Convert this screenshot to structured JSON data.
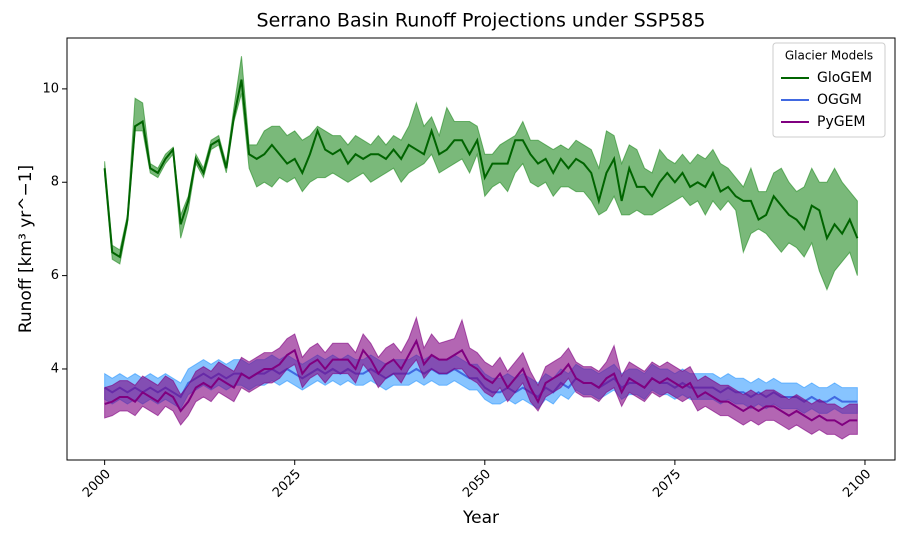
{
  "chart_data": {
    "type": "band-line",
    "title": "Serrano Basin Runoff Projections under SSP585",
    "xlabel": "Year",
    "ylabel": "Runoff [km³ yr^−1]",
    "legend_title": "Glacier Models",
    "legend_loc": "upper right",
    "xlim": [
      1995.05,
      2103.95
    ],
    "ylim": [
      2.05,
      11.09
    ],
    "xticks": [
      2000,
      2025,
      2050,
      2075,
      2100
    ],
    "yticks": [
      4,
      6,
      8,
      10
    ],
    "x": [
      2000,
      2001,
      2002,
      2003,
      2004,
      2005,
      2006,
      2007,
      2008,
      2009,
      2010,
      2011,
      2012,
      2013,
      2014,
      2015,
      2016,
      2017,
      2018,
      2019,
      2020,
      2021,
      2022,
      2023,
      2024,
      2025,
      2026,
      2027,
      2028,
      2029,
      2030,
      2031,
      2032,
      2033,
      2034,
      2035,
      2036,
      2037,
      2038,
      2039,
      2040,
      2041,
      2042,
      2043,
      2044,
      2045,
      2046,
      2047,
      2048,
      2049,
      2050,
      2051,
      2052,
      2053,
      2054,
      2055,
      2056,
      2057,
      2058,
      2059,
      2060,
      2061,
      2062,
      2063,
      2064,
      2065,
      2066,
      2067,
      2068,
      2069,
      2070,
      2071,
      2072,
      2073,
      2074,
      2075,
      2076,
      2077,
      2078,
      2079,
      2080,
      2081,
      2082,
      2083,
      2084,
      2085,
      2086,
      2087,
      2088,
      2089,
      2090,
      2091,
      2092,
      2093,
      2094,
      2095,
      2096,
      2097,
      2098,
      2099
    ],
    "series": [
      {
        "name": "GloGEM",
        "color": "#006400",
        "band_color": "#228b2299",
        "values": [
          8.3,
          6.5,
          6.4,
          7.2,
          9.2,
          9.3,
          8.3,
          8.2,
          8.5,
          8.7,
          7.1,
          7.6,
          8.5,
          8.2,
          8.8,
          8.9,
          8.3,
          9.4,
          10.2,
          8.6,
          8.5,
          8.6,
          8.8,
          8.6,
          8.4,
          8.5,
          8.2,
          8.6,
          9.1,
          8.7,
          8.6,
          8.7,
          8.4,
          8.6,
          8.5,
          8.6,
          8.6,
          8.5,
          8.7,
          8.5,
          8.8,
          8.7,
          8.6,
          9.1,
          8.6,
          8.7,
          8.9,
          8.9,
          8.6,
          8.9,
          8.1,
          8.4,
          8.4,
          8.4,
          8.9,
          8.9,
          8.6,
          8.4,
          8.5,
          8.2,
          8.5,
          8.3,
          8.5,
          8.4,
          8.2,
          7.6,
          8.2,
          8.5,
          7.6,
          8.3,
          7.9,
          7.9,
          7.7,
          8.0,
          8.2,
          8.0,
          8.2,
          7.9,
          8.0,
          7.9,
          8.2,
          7.8,
          7.9,
          7.7,
          7.6,
          7.6,
          7.2,
          7.3,
          7.7,
          7.5,
          7.3,
          7.2,
          7.0,
          7.5,
          7.4,
          6.8,
          7.1,
          6.9,
          7.2,
          6.8
        ],
        "lower": [
          8.15,
          6.35,
          6.25,
          7.1,
          9.1,
          9.1,
          8.2,
          8.1,
          8.4,
          8.6,
          6.8,
          7.4,
          8.4,
          8.1,
          8.7,
          8.8,
          8.2,
          9.3,
          9.9,
          8.3,
          7.9,
          8.0,
          7.9,
          8.1,
          8.0,
          8.1,
          7.8,
          8.0,
          8.1,
          8.1,
          8.2,
          8.1,
          8.0,
          8.1,
          8.2,
          8.0,
          8.1,
          8.2,
          8.3,
          8.0,
          8.2,
          8.3,
          8.4,
          8.6,
          8.2,
          8.3,
          8.4,
          8.5,
          8.2,
          8.6,
          7.7,
          7.9,
          8.0,
          7.8,
          8.2,
          8.4,
          8.0,
          7.9,
          8.0,
          7.7,
          7.9,
          7.9,
          7.8,
          7.8,
          7.6,
          7.3,
          7.4,
          7.7,
          7.3,
          7.3,
          7.4,
          7.3,
          7.3,
          7.4,
          7.5,
          7.6,
          7.7,
          7.5,
          7.6,
          7.3,
          7.6,
          7.4,
          7.6,
          7.4,
          6.5,
          6.9,
          7.0,
          6.9,
          6.7,
          6.5,
          6.7,
          6.6,
          6.4,
          6.7,
          6.1,
          5.7,
          6.1,
          6.3,
          6.5,
          6.0
        ],
        "upper": [
          8.45,
          6.65,
          6.55,
          7.3,
          9.8,
          9.7,
          8.4,
          8.3,
          8.6,
          8.75,
          7.3,
          7.7,
          8.6,
          8.3,
          8.9,
          9.0,
          8.4,
          9.6,
          10.7,
          8.8,
          8.8,
          9.1,
          9.2,
          9.2,
          9.0,
          9.1,
          8.9,
          9.0,
          9.2,
          9.1,
          9.0,
          9.0,
          8.8,
          9.0,
          8.9,
          8.8,
          9.0,
          8.8,
          9.0,
          8.9,
          9.2,
          9.7,
          9.2,
          9.4,
          9.0,
          9.6,
          9.3,
          9.3,
          9.3,
          9.2,
          8.6,
          8.6,
          8.8,
          8.9,
          9.0,
          9.3,
          8.9,
          8.9,
          8.8,
          8.7,
          8.8,
          8.7,
          8.9,
          8.8,
          8.7,
          8.3,
          9.1,
          9.0,
          8.4,
          8.8,
          8.7,
          8.3,
          8.2,
          8.7,
          8.5,
          8.4,
          8.6,
          8.4,
          8.6,
          8.5,
          8.7,
          8.4,
          8.3,
          8.1,
          7.9,
          8.3,
          7.8,
          7.8,
          8.2,
          8.3,
          8.0,
          7.8,
          7.9,
          8.3,
          8.0,
          8.0,
          8.3,
          8.0,
          7.8,
          7.6
        ]
      },
      {
        "name": "OGGM",
        "color": "#4169e1",
        "band_color": "#1e90ff88",
        "values": [
          3.6,
          3.5,
          3.6,
          3.5,
          3.6,
          3.5,
          3.6,
          3.5,
          3.6,
          3.5,
          3.4,
          3.7,
          3.8,
          3.9,
          3.8,
          3.9,
          3.8,
          3.9,
          3.9,
          3.8,
          3.9,
          3.9,
          4.0,
          3.9,
          4.0,
          3.9,
          3.8,
          3.9,
          4.0,
          3.9,
          4.0,
          3.9,
          4.0,
          3.9,
          3.9,
          4.0,
          3.9,
          3.8,
          3.9,
          3.9,
          3.9,
          4.0,
          3.9,
          4.0,
          3.9,
          3.9,
          4.0,
          3.9,
          3.8,
          3.8,
          3.6,
          3.5,
          3.5,
          3.6,
          3.5,
          3.6,
          3.5,
          3.4,
          3.6,
          3.5,
          3.7,
          3.6,
          3.8,
          3.7,
          3.7,
          3.6,
          3.7,
          3.8,
          3.6,
          3.7,
          3.7,
          3.6,
          3.8,
          3.7,
          3.7,
          3.6,
          3.7,
          3.6,
          3.6,
          3.6,
          3.6,
          3.5,
          3.6,
          3.5,
          3.5,
          3.4,
          3.5,
          3.4,
          3.5,
          3.4,
          3.4,
          3.4,
          3.3,
          3.4,
          3.3,
          3.3,
          3.4,
          3.3,
          3.3,
          3.3
        ],
        "lower": [
          3.35,
          3.25,
          3.35,
          3.25,
          3.35,
          3.25,
          3.35,
          3.25,
          3.35,
          3.25,
          3.15,
          3.45,
          3.55,
          3.65,
          3.55,
          3.65,
          3.55,
          3.65,
          3.65,
          3.55,
          3.65,
          3.65,
          3.75,
          3.65,
          3.75,
          3.65,
          3.55,
          3.65,
          3.75,
          3.65,
          3.75,
          3.65,
          3.75,
          3.65,
          3.65,
          3.75,
          3.65,
          3.55,
          3.65,
          3.65,
          3.65,
          3.75,
          3.65,
          3.75,
          3.65,
          3.65,
          3.75,
          3.65,
          3.55,
          3.55,
          3.35,
          3.25,
          3.25,
          3.35,
          3.25,
          3.35,
          3.25,
          3.15,
          3.35,
          3.25,
          3.45,
          3.35,
          3.55,
          3.45,
          3.45,
          3.35,
          3.45,
          3.55,
          3.35,
          3.45,
          3.45,
          3.35,
          3.55,
          3.45,
          3.45,
          3.35,
          3.45,
          3.35,
          3.35,
          3.35,
          3.35,
          3.25,
          3.35,
          3.25,
          3.25,
          3.15,
          3.25,
          3.15,
          3.25,
          3.15,
          3.15,
          3.15,
          3.05,
          3.15,
          3.05,
          3.05,
          3.15,
          3.05,
          3.05,
          3.05
        ],
        "upper": [
          3.9,
          3.8,
          3.9,
          3.8,
          3.9,
          3.8,
          3.9,
          3.8,
          3.9,
          3.8,
          3.7,
          4.0,
          4.1,
          4.2,
          4.1,
          4.2,
          4.1,
          4.2,
          4.2,
          4.1,
          4.2,
          4.2,
          4.3,
          4.2,
          4.3,
          4.2,
          4.1,
          4.2,
          4.3,
          4.2,
          4.3,
          4.2,
          4.3,
          4.2,
          4.2,
          4.3,
          4.2,
          4.1,
          4.2,
          4.2,
          4.2,
          4.3,
          4.2,
          4.3,
          4.2,
          4.2,
          4.3,
          4.2,
          4.1,
          4.1,
          3.9,
          3.8,
          3.8,
          3.9,
          3.8,
          3.9,
          3.8,
          3.7,
          3.9,
          3.8,
          4.0,
          3.9,
          4.1,
          4.0,
          4.0,
          3.9,
          4.0,
          4.1,
          3.9,
          4.0,
          4.0,
          3.9,
          4.1,
          4.0,
          4.0,
          3.9,
          4.0,
          3.9,
          3.9,
          3.9,
          3.9,
          3.8,
          3.9,
          3.8,
          3.8,
          3.7,
          3.8,
          3.7,
          3.8,
          3.7,
          3.7,
          3.7,
          3.6,
          3.7,
          3.6,
          3.6,
          3.7,
          3.6,
          3.6,
          3.6
        ]
      },
      {
        "name": "PyGEM",
        "color": "#800080",
        "band_color": "#80008099",
        "values": [
          3.25,
          3.3,
          3.4,
          3.4,
          3.3,
          3.5,
          3.4,
          3.3,
          3.5,
          3.4,
          3.1,
          3.3,
          3.6,
          3.7,
          3.6,
          3.8,
          3.7,
          3.6,
          3.9,
          3.8,
          3.9,
          4.0,
          4.0,
          4.1,
          4.3,
          4.4,
          3.9,
          4.1,
          4.2,
          4.0,
          4.2,
          4.2,
          4.2,
          4.0,
          4.4,
          4.2,
          3.9,
          4.1,
          4.2,
          4.0,
          4.3,
          4.6,
          4.1,
          4.3,
          4.2,
          4.2,
          4.3,
          4.4,
          4.1,
          4.0,
          3.8,
          3.7,
          3.9,
          3.6,
          3.8,
          4.0,
          3.6,
          3.3,
          3.7,
          3.8,
          3.9,
          4.1,
          3.8,
          3.7,
          3.7,
          3.6,
          3.8,
          3.9,
          3.5,
          3.8,
          3.7,
          3.6,
          3.8,
          3.7,
          3.8,
          3.7,
          3.6,
          3.7,
          3.4,
          3.5,
          3.4,
          3.3,
          3.3,
          3.2,
          3.1,
          3.2,
          3.1,
          3.2,
          3.2,
          3.1,
          3.0,
          3.1,
          3.0,
          2.9,
          3.0,
          2.9,
          2.9,
          2.8,
          2.9,
          2.9
        ],
        "lower": [
          2.95,
          3.0,
          3.1,
          3.1,
          3.0,
          3.2,
          3.1,
          3.0,
          3.2,
          3.1,
          2.8,
          3.0,
          3.3,
          3.4,
          3.3,
          3.5,
          3.4,
          3.3,
          3.6,
          3.5,
          3.6,
          3.7,
          3.7,
          3.8,
          4.0,
          4.1,
          3.6,
          3.8,
          3.9,
          3.7,
          3.9,
          3.9,
          3.9,
          3.7,
          4.1,
          3.9,
          3.6,
          3.8,
          3.9,
          3.7,
          4.0,
          4.2,
          3.8,
          4.0,
          3.9,
          3.9,
          4.0,
          4.0,
          3.8,
          3.7,
          3.5,
          3.4,
          3.6,
          3.3,
          3.5,
          3.7,
          3.3,
          3.1,
          3.4,
          3.5,
          3.6,
          3.8,
          3.5,
          3.4,
          3.4,
          3.3,
          3.5,
          3.6,
          3.2,
          3.5,
          3.4,
          3.3,
          3.5,
          3.4,
          3.5,
          3.4,
          3.3,
          3.4,
          3.1,
          3.2,
          3.1,
          3.0,
          3.0,
          2.9,
          2.8,
          2.9,
          2.8,
          2.9,
          2.9,
          2.8,
          2.7,
          2.8,
          2.7,
          2.6,
          2.7,
          2.6,
          2.6,
          2.5,
          2.6,
          2.6
        ],
        "upper": [
          3.6,
          3.65,
          3.75,
          3.75,
          3.65,
          3.85,
          3.75,
          3.65,
          3.85,
          3.75,
          3.45,
          3.65,
          3.95,
          4.05,
          3.95,
          4.15,
          4.05,
          3.95,
          4.25,
          4.15,
          4.25,
          4.35,
          4.35,
          4.45,
          4.65,
          4.75,
          4.25,
          4.45,
          4.55,
          4.35,
          4.55,
          4.55,
          4.55,
          4.35,
          4.75,
          4.55,
          4.25,
          4.45,
          4.55,
          4.35,
          4.65,
          5.1,
          4.45,
          4.75,
          4.55,
          4.6,
          4.65,
          5.05,
          4.45,
          4.35,
          4.15,
          4.05,
          4.25,
          3.95,
          4.15,
          4.35,
          3.95,
          3.65,
          4.05,
          4.15,
          4.25,
          4.45,
          4.15,
          4.05,
          4.05,
          3.95,
          4.15,
          4.5,
          3.85,
          4.15,
          4.05,
          3.95,
          4.15,
          4.05,
          4.15,
          4.05,
          3.95,
          4.05,
          3.75,
          3.85,
          3.75,
          3.65,
          3.65,
          3.55,
          3.45,
          3.55,
          3.45,
          3.55,
          3.55,
          3.45,
          3.35,
          3.45,
          3.35,
          3.25,
          3.35,
          3.25,
          3.25,
          3.15,
          3.25,
          3.25
        ]
      }
    ]
  }
}
